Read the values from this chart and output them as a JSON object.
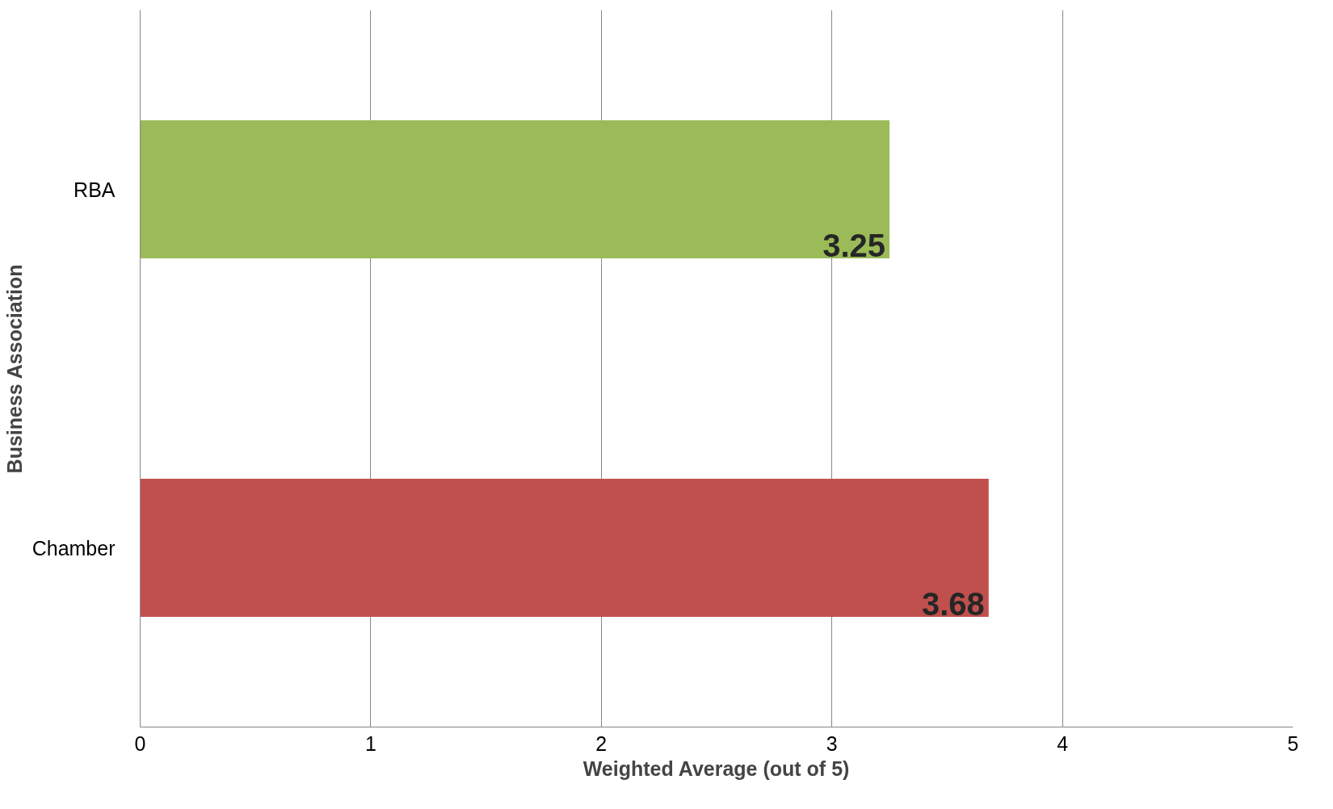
{
  "chart_data": {
    "type": "bar",
    "orientation": "horizontal",
    "categories": [
      "RBA",
      "Chamber"
    ],
    "values": [
      3.25,
      3.68
    ],
    "colors": [
      "#9bbb59",
      "#c0504d"
    ],
    "xlabel": "Weighted Average (out of 5)",
    "ylabel": "Business Association",
    "xlim": [
      0,
      5
    ],
    "xticks": [
      0,
      1,
      2,
      3,
      4,
      5
    ],
    "grid": "x",
    "data_labels": true
  }
}
